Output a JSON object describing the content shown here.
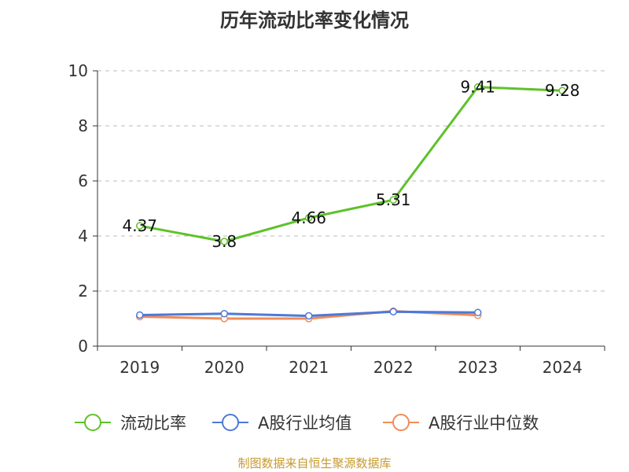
{
  "title": "历年流动比率变化情况",
  "footer": "制图数据来自恒生聚源数据库",
  "colors": {
    "liudong": "#5ec22a",
    "avg": "#4e79d8",
    "median": "#f08c5a",
    "axis": "#333333",
    "grid": "#bbbbbb"
  },
  "chart_data": {
    "type": "line",
    "categories": [
      "2019",
      "2020",
      "2021",
      "2022",
      "2023",
      "2024"
    ],
    "ylim": [
      0,
      10
    ],
    "yticks": [
      "0",
      "2",
      "4",
      "6",
      "8",
      "10"
    ],
    "grid": "horizontal-dashed",
    "legend_position": "bottom",
    "series": [
      {
        "name": "流动比率",
        "values": [
          4.37,
          3.8,
          4.66,
          5.31,
          9.41,
          9.28
        ],
        "labels": [
          "4.37",
          "3.8",
          "4.66",
          "5.31",
          "9.41",
          "9.28"
        ],
        "color": "#5ec22a"
      },
      {
        "name": "A股行业均值",
        "values": [
          1.13,
          1.18,
          1.1,
          1.25,
          1.22,
          null
        ],
        "color": "#4e79d8"
      },
      {
        "name": "A股行业中位数",
        "values": [
          1.07,
          1.0,
          1.0,
          1.27,
          1.12,
          null
        ],
        "color": "#f08c5a"
      }
    ]
  }
}
